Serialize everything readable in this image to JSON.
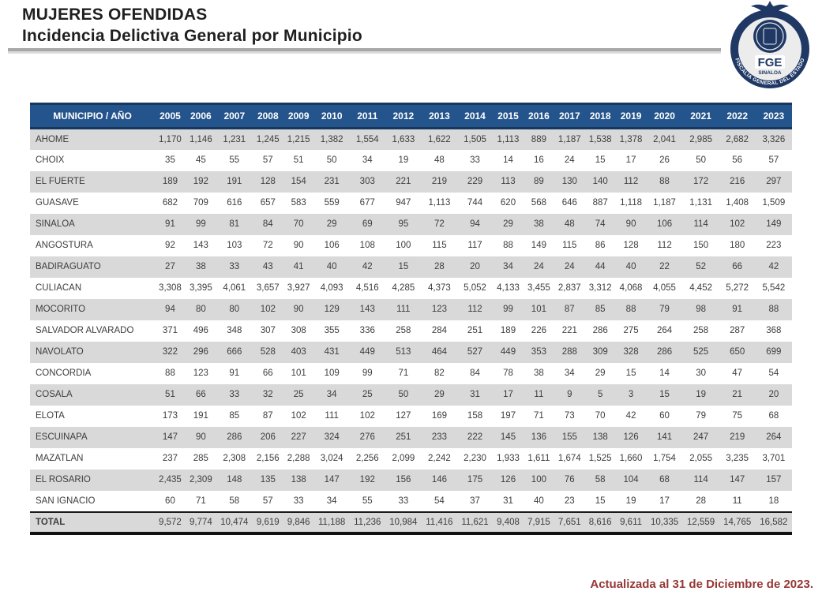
{
  "header": {
    "title_line1": "MUJERES OFENDIDAS",
    "title_line2": "Incidencia Delictiva General por Municipio"
  },
  "logo": {
    "acronym": "FGE",
    "state": "SINALOA",
    "ring_text": "FISCALÍA GENERAL DEL ESTADO"
  },
  "table": {
    "corner_header": "MUNICIPIO / AÑO",
    "years": [
      "2005",
      "2006",
      "2007",
      "2008",
      "2009",
      "2010",
      "2011",
      "2012",
      "2013",
      "2014",
      "2015",
      "2016",
      "2017",
      "2018",
      "2019",
      "2020",
      "2021",
      "2022",
      "2023"
    ],
    "rows": [
      {
        "municipio": "AHOME",
        "values": [
          "1,170",
          "1,146",
          "1,231",
          "1,245",
          "1,215",
          "1,382",
          "1,554",
          "1,633",
          "1,622",
          "1,505",
          "1,113",
          "889",
          "1,187",
          "1,538",
          "1,378",
          "2,041",
          "2,985",
          "2,682",
          "3,326"
        ]
      },
      {
        "municipio": "CHOIX",
        "values": [
          "35",
          "45",
          "55",
          "57",
          "51",
          "50",
          "34",
          "19",
          "48",
          "33",
          "14",
          "16",
          "24",
          "15",
          "17",
          "26",
          "50",
          "56",
          "57"
        ]
      },
      {
        "municipio": "EL FUERTE",
        "values": [
          "189",
          "192",
          "191",
          "128",
          "154",
          "231",
          "303",
          "221",
          "219",
          "229",
          "113",
          "89",
          "130",
          "140",
          "112",
          "88",
          "172",
          "216",
          "297"
        ]
      },
      {
        "municipio": "GUASAVE",
        "values": [
          "682",
          "709",
          "616",
          "657",
          "583",
          "559",
          "677",
          "947",
          "1,113",
          "744",
          "620",
          "568",
          "646",
          "887",
          "1,118",
          "1,187",
          "1,131",
          "1,408",
          "1,509"
        ]
      },
      {
        "municipio": "SINALOA",
        "values": [
          "91",
          "99",
          "81",
          "84",
          "70",
          "29",
          "69",
          "95",
          "72",
          "94",
          "29",
          "38",
          "48",
          "74",
          "90",
          "106",
          "114",
          "102",
          "149"
        ]
      },
      {
        "municipio": "ANGOSTURA",
        "values": [
          "92",
          "143",
          "103",
          "72",
          "90",
          "106",
          "108",
          "100",
          "115",
          "117",
          "88",
          "149",
          "115",
          "86",
          "128",
          "112",
          "150",
          "180",
          "223"
        ]
      },
      {
        "municipio": "BADIRAGUATO",
        "values": [
          "27",
          "38",
          "33",
          "43",
          "41",
          "40",
          "42",
          "15",
          "28",
          "20",
          "34",
          "24",
          "24",
          "44",
          "40",
          "22",
          "52",
          "66",
          "42"
        ]
      },
      {
        "municipio": "CULIACAN",
        "values": [
          "3,308",
          "3,395",
          "4,061",
          "3,657",
          "3,927",
          "4,093",
          "4,516",
          "4,285",
          "4,373",
          "5,052",
          "4,133",
          "3,455",
          "2,837",
          "3,312",
          "4,068",
          "4,055",
          "4,452",
          "5,272",
          "5,542"
        ]
      },
      {
        "municipio": "MOCORITO",
        "values": [
          "94",
          "80",
          "80",
          "102",
          "90",
          "129",
          "143",
          "111",
          "123",
          "112",
          "99",
          "101",
          "87",
          "85",
          "88",
          "79",
          "98",
          "91",
          "88"
        ]
      },
      {
        "municipio": "SALVADOR ALVARADO",
        "values": [
          "371",
          "496",
          "348",
          "307",
          "308",
          "355",
          "336",
          "258",
          "284",
          "251",
          "189",
          "226",
          "221",
          "286",
          "275",
          "264",
          "258",
          "287",
          "368"
        ]
      },
      {
        "municipio": "NAVOLATO",
        "values": [
          "322",
          "296",
          "666",
          "528",
          "403",
          "431",
          "449",
          "513",
          "464",
          "527",
          "449",
          "353",
          "288",
          "309",
          "328",
          "286",
          "525",
          "650",
          "699"
        ]
      },
      {
        "municipio": "CONCORDIA",
        "values": [
          "88",
          "123",
          "91",
          "66",
          "101",
          "109",
          "99",
          "71",
          "82",
          "84",
          "78",
          "38",
          "34",
          "29",
          "15",
          "14",
          "30",
          "47",
          "54"
        ]
      },
      {
        "municipio": "COSALA",
        "values": [
          "51",
          "66",
          "33",
          "32",
          "25",
          "34",
          "25",
          "50",
          "29",
          "31",
          "17",
          "11",
          "9",
          "5",
          "3",
          "15",
          "19",
          "21",
          "20"
        ]
      },
      {
        "municipio": "ELOTA",
        "values": [
          "173",
          "191",
          "85",
          "87",
          "102",
          "111",
          "102",
          "127",
          "169",
          "158",
          "197",
          "71",
          "73",
          "70",
          "42",
          "60",
          "79",
          "75",
          "68"
        ]
      },
      {
        "municipio": "ESCUINAPA",
        "values": [
          "147",
          "90",
          "286",
          "206",
          "227",
          "324",
          "276",
          "251",
          "233",
          "222",
          "145",
          "136",
          "155",
          "138",
          "126",
          "141",
          "247",
          "219",
          "264"
        ]
      },
      {
        "municipio": "MAZATLAN",
        "values": [
          "237",
          "285",
          "2,308",
          "2,156",
          "2,288",
          "3,024",
          "2,256",
          "2,099",
          "2,242",
          "2,230",
          "1,933",
          "1,611",
          "1,674",
          "1,525",
          "1,660",
          "1,754",
          "2,055",
          "3,235",
          "3,701"
        ]
      },
      {
        "municipio": "EL ROSARIO",
        "values": [
          "2,435",
          "2,309",
          "148",
          "135",
          "138",
          "147",
          "192",
          "156",
          "146",
          "175",
          "126",
          "100",
          "76",
          "58",
          "104",
          "68",
          "114",
          "147",
          "157"
        ]
      },
      {
        "municipio": "SAN IGNACIO",
        "values": [
          "60",
          "71",
          "58",
          "57",
          "33",
          "34",
          "55",
          "33",
          "54",
          "37",
          "31",
          "40",
          "23",
          "15",
          "19",
          "17",
          "28",
          "11",
          "18"
        ]
      }
    ],
    "total": {
      "municipio": "TOTAL",
      "values": [
        "9,572",
        "9,774",
        "10,474",
        "9,619",
        "9,846",
        "11,188",
        "11,236",
        "10,984",
        "11,416",
        "11,621",
        "9,408",
        "7,915",
        "7,651",
        "8,616",
        "9,611",
        "10,335",
        "12,559",
        "14,765",
        "16,582"
      ]
    }
  },
  "footer": {
    "updated": "Actualizada al 31 de Diciembre de 2023."
  },
  "colors": {
    "header_blue": "#24548C",
    "header_border_navy": "#17375E",
    "row_stripe_gray": "#D9D9D9",
    "footer_maroon": "#953735",
    "logo_navy": "#1F3864"
  }
}
